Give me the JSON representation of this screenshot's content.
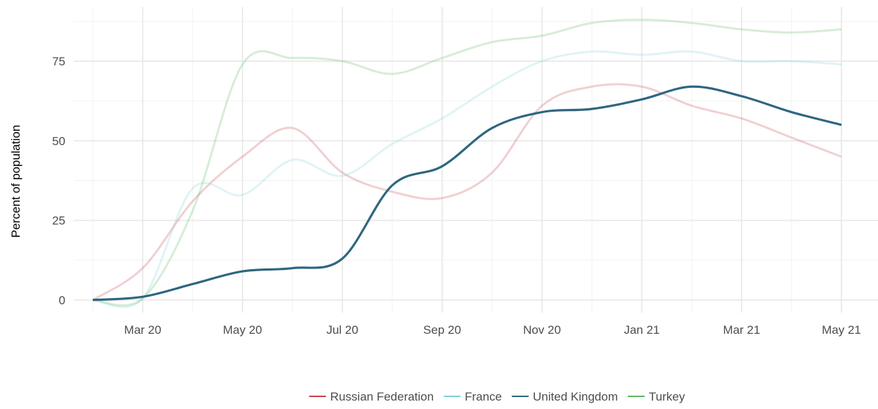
{
  "chart_data": {
    "type": "line",
    "y_label": "Percent of population",
    "x": [
      "2020-02",
      "2020-03",
      "2020-04",
      "2020-05",
      "2020-06",
      "2020-07",
      "2020-08",
      "2020-09",
      "2020-10",
      "2020-11",
      "2020-12",
      "2021-01",
      "2021-02",
      "2021-03",
      "2021-04",
      "2021-05"
    ],
    "xticks": [
      {
        "value": "2020-03",
        "label": "Mar 20"
      },
      {
        "value": "2020-05",
        "label": "May 20"
      },
      {
        "value": "2020-07",
        "label": "Jul 20"
      },
      {
        "value": "2020-09",
        "label": "Sep 20"
      },
      {
        "value": "2020-11",
        "label": "Nov 20"
      },
      {
        "value": "2021-01",
        "label": "Jan 21"
      },
      {
        "value": "2021-03",
        "label": "Mar 21"
      },
      {
        "value": "2021-05",
        "label": "May 21"
      }
    ],
    "ylim": [
      -4,
      92
    ],
    "yticks": [
      0,
      25,
      50,
      75
    ],
    "grid": true,
    "legend": "bottom",
    "highlight": "United Kingdom",
    "series": [
      {
        "name": "Russian Federation",
        "color": "#c9414a",
        "values": [
          0,
          10,
          31,
          45,
          54,
          40,
          34,
          32,
          40,
          61,
          67,
          67,
          61,
          57,
          51,
          45
        ]
      },
      {
        "name": "France",
        "color": "#7fd1d8",
        "values": [
          0,
          0.5,
          35,
          33,
          44,
          39,
          49,
          57,
          67,
          75,
          78,
          77,
          78,
          75,
          75,
          74
        ]
      },
      {
        "name": "United Kingdom",
        "color": "#2e6680",
        "values": [
          0,
          1,
          5,
          9,
          10,
          13,
          36,
          42,
          54,
          59,
          60,
          63,
          67,
          64,
          59,
          55
        ]
      },
      {
        "name": "Turkey",
        "color": "#5cb85c",
        "values": [
          0,
          0.5,
          28,
          74,
          76,
          75,
          71,
          76,
          81,
          83,
          87,
          88,
          87,
          85,
          84,
          85
        ]
      }
    ]
  }
}
